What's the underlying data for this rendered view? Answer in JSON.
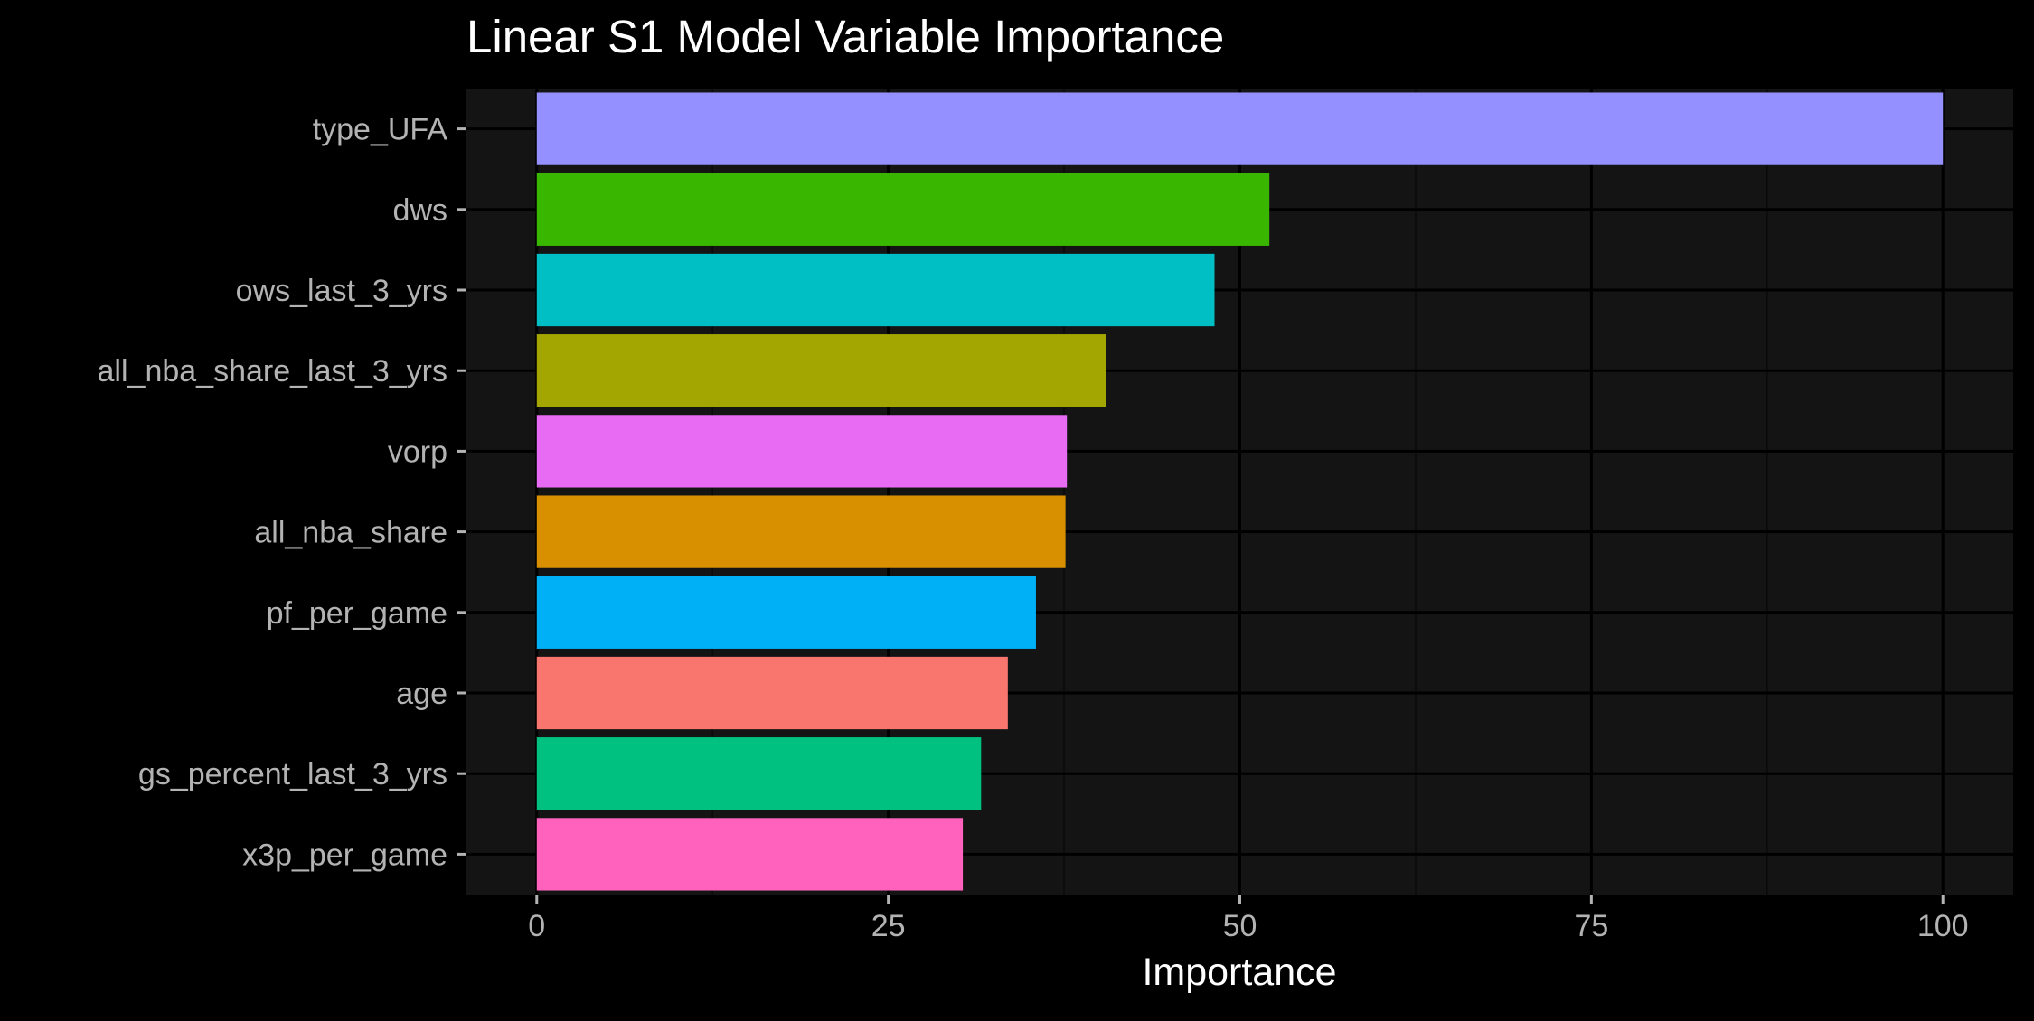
{
  "chart_data": {
    "type": "bar",
    "orientation": "horizontal",
    "title": "Linear S1 Model Variable Importance",
    "xlabel": "Importance",
    "ylabel": "",
    "xlim": [
      -5,
      105
    ],
    "x_ticks": [
      0,
      25,
      50,
      75,
      100
    ],
    "x_tick_labels": [
      "0",
      "25",
      "50",
      "75",
      "100"
    ],
    "grid": true,
    "legend": "none",
    "categories": [
      "type_UFA",
      "dws",
      "ows_last_3_yrs",
      "all_nba_share_last_3_yrs",
      "vorp",
      "all_nba_share",
      "pf_per_game",
      "age",
      "gs_percent_last_3_yrs",
      "x3p_per_game"
    ],
    "values": [
      100,
      52.1,
      48.2,
      40.5,
      37.7,
      37.6,
      35.5,
      33.5,
      31.6,
      30.3
    ],
    "colors": [
      "#9590FF",
      "#39B600",
      "#00BFC4",
      "#A3A500",
      "#E76BF3",
      "#D89000",
      "#00B0F6",
      "#F8766D",
      "#00C17F",
      "#FF62BC"
    ]
  },
  "theme": {
    "background": "#000000",
    "panel": "#141414",
    "grid_major": "#000000",
    "grid_minor": "#0a0a0a",
    "axis_text": "#B3B3B3",
    "title_text": "#FFFFFF"
  }
}
